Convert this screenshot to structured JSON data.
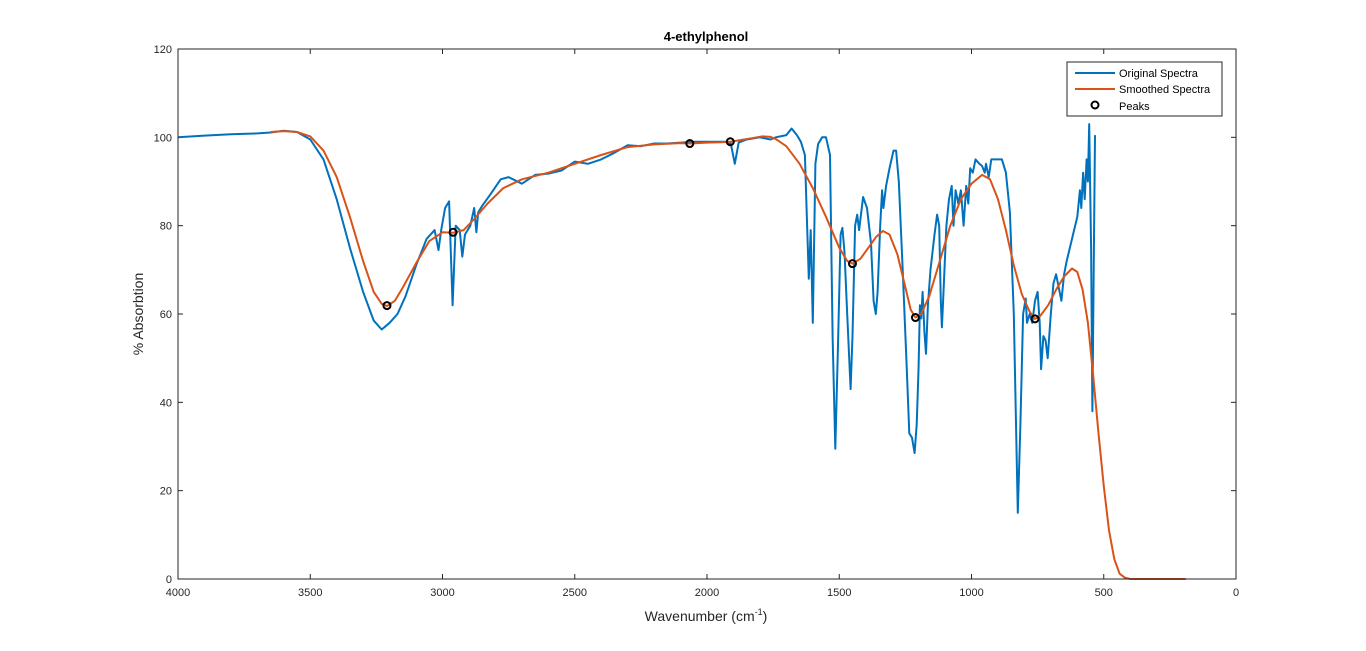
{
  "chart_data": {
    "type": "line",
    "title": "4-ethylphenol",
    "xlabel": "Wavenumber (cm",
    "xlabel_sup": "-1",
    "xlabel_end": ")",
    "ylabel": "% Absorbtion",
    "xlim": [
      0,
      4000
    ],
    "ylim": [
      0,
      120
    ],
    "x_reversed": true,
    "grid": false,
    "legend_position": "top-right",
    "x_ticks": [
      4000,
      3500,
      3000,
      2500,
      2000,
      1500,
      1000,
      500,
      0
    ],
    "y_ticks": [
      0,
      20,
      40,
      60,
      80,
      100,
      120
    ],
    "series": [
      {
        "name": "Original Spectra",
        "color": "#0072BD",
        "style": "line",
        "points": [
          [
            4000,
            100.0
          ],
          [
            3900,
            100.4
          ],
          [
            3800,
            100.7
          ],
          [
            3700,
            100.9
          ],
          [
            3650,
            101.1
          ],
          [
            3600,
            101.5
          ],
          [
            3550,
            101.2
          ],
          [
            3500,
            99.5
          ],
          [
            3450,
            95
          ],
          [
            3400,
            86
          ],
          [
            3350,
            75
          ],
          [
            3300,
            65
          ],
          [
            3260,
            58.5
          ],
          [
            3230,
            56.5
          ],
          [
            3200,
            58
          ],
          [
            3170,
            60
          ],
          [
            3140,
            64
          ],
          [
            3100,
            71
          ],
          [
            3060,
            77
          ],
          [
            3030,
            79
          ],
          [
            3015,
            74.5
          ],
          [
            3005,
            79
          ],
          [
            2990,
            84
          ],
          [
            2975,
            85.5
          ],
          [
            2962,
            62
          ],
          [
            2950,
            80
          ],
          [
            2935,
            79
          ],
          [
            2925,
            73
          ],
          [
            2915,
            78
          ],
          [
            2895,
            80
          ],
          [
            2880,
            84
          ],
          [
            2872,
            78.5
          ],
          [
            2865,
            83
          ],
          [
            2850,
            84.5
          ],
          [
            2820,
            87
          ],
          [
            2780,
            90.5
          ],
          [
            2750,
            91
          ],
          [
            2700,
            89.5
          ],
          [
            2650,
            91.5
          ],
          [
            2600,
            91.8
          ],
          [
            2550,
            92.5
          ],
          [
            2500,
            94.5
          ],
          [
            2450,
            94
          ],
          [
            2400,
            95
          ],
          [
            2350,
            96.5
          ],
          [
            2300,
            98.2
          ],
          [
            2250,
            98
          ],
          [
            2200,
            98.6
          ],
          [
            2150,
            98.6
          ],
          [
            2100,
            98.8
          ],
          [
            2050,
            99
          ],
          [
            2000,
            99
          ],
          [
            1950,
            99
          ],
          [
            1930,
            99
          ],
          [
            1910,
            98.6
          ],
          [
            1895,
            94
          ],
          [
            1880,
            98.8
          ],
          [
            1850,
            99.5
          ],
          [
            1800,
            100
          ],
          [
            1760,
            99.5
          ],
          [
            1740,
            100
          ],
          [
            1700,
            100.5
          ],
          [
            1680,
            102
          ],
          [
            1660,
            100.5
          ],
          [
            1645,
            99
          ],
          [
            1630,
            96
          ],
          [
            1615,
            68
          ],
          [
            1608,
            79
          ],
          [
            1600,
            58
          ],
          [
            1590,
            94
          ],
          [
            1580,
            98.5
          ],
          [
            1565,
            100
          ],
          [
            1550,
            100
          ],
          [
            1535,
            96
          ],
          [
            1525,
            55
          ],
          [
            1515,
            29.5
          ],
          [
            1505,
            52
          ],
          [
            1495,
            78
          ],
          [
            1488,
            79.5
          ],
          [
            1480,
            74
          ],
          [
            1470,
            60
          ],
          [
            1457,
            43
          ],
          [
            1450,
            55
          ],
          [
            1440,
            80
          ],
          [
            1432,
            82.5
          ],
          [
            1425,
            79
          ],
          [
            1410,
            86.5
          ],
          [
            1395,
            84
          ],
          [
            1380,
            76
          ],
          [
            1370,
            63
          ],
          [
            1362,
            60
          ],
          [
            1355,
            65
          ],
          [
            1345,
            80
          ],
          [
            1338,
            88
          ],
          [
            1333,
            84
          ],
          [
            1323,
            89
          ],
          [
            1310,
            93
          ],
          [
            1295,
            97
          ],
          [
            1285,
            97
          ],
          [
            1275,
            90
          ],
          [
            1260,
            70
          ],
          [
            1245,
            48
          ],
          [
            1235,
            33
          ],
          [
            1225,
            32
          ],
          [
            1215,
            28.5
          ],
          [
            1207,
            35
          ],
          [
            1200,
            48
          ],
          [
            1195,
            62
          ],
          [
            1190,
            59
          ],
          [
            1185,
            65
          ],
          [
            1178,
            56
          ],
          [
            1172,
            51
          ],
          [
            1165,
            62
          ],
          [
            1155,
            70
          ],
          [
            1140,
            78
          ],
          [
            1130,
            82.5
          ],
          [
            1122,
            80
          ],
          [
            1116,
            63
          ],
          [
            1112,
            57
          ],
          [
            1106,
            65
          ],
          [
            1095,
            80
          ],
          [
            1085,
            86
          ],
          [
            1075,
            89
          ],
          [
            1068,
            80
          ],
          [
            1060,
            88
          ],
          [
            1050,
            85
          ],
          [
            1040,
            88
          ],
          [
            1030,
            80
          ],
          [
            1020,
            89
          ],
          [
            1012,
            85
          ],
          [
            1005,
            93
          ],
          [
            995,
            92
          ],
          [
            985,
            95
          ],
          [
            970,
            94
          ],
          [
            960,
            93.5
          ],
          [
            950,
            92
          ],
          [
            945,
            94
          ],
          [
            935,
            91
          ],
          [
            925,
            95
          ],
          [
            900,
            95
          ],
          [
            885,
            95
          ],
          [
            870,
            92
          ],
          [
            855,
            83
          ],
          [
            840,
            60
          ],
          [
            825,
            15
          ],
          [
            815,
            35
          ],
          [
            805,
            60
          ],
          [
            795,
            63.5
          ],
          [
            790,
            58
          ],
          [
            780,
            60
          ],
          [
            770,
            58
          ],
          [
            760,
            63
          ],
          [
            750,
            65
          ],
          [
            742,
            58
          ],
          [
            737,
            47.5
          ],
          [
            728,
            55
          ],
          [
            720,
            54
          ],
          [
            712,
            50
          ],
          [
            700,
            60
          ],
          [
            690,
            67
          ],
          [
            680,
            69
          ],
          [
            660,
            63
          ],
          [
            650,
            69
          ],
          [
            640,
            72
          ],
          [
            620,
            77
          ],
          [
            600,
            82
          ],
          [
            590,
            88
          ],
          [
            585,
            84
          ],
          [
            578,
            92
          ],
          [
            572,
            86
          ],
          [
            565,
            95
          ],
          [
            560,
            90
          ],
          [
            555,
            103
          ],
          [
            548,
            75
          ],
          [
            543,
            38
          ],
          [
            538,
            70
          ],
          [
            533,
            100.5
          ]
        ]
      },
      {
        "name": "Smoothed Spectra",
        "color": "#D95319",
        "style": "line",
        "points": [
          [
            3650,
            101.2
          ],
          [
            3600,
            101.4
          ],
          [
            3550,
            101.2
          ],
          [
            3500,
            100.2
          ],
          [
            3450,
            97
          ],
          [
            3400,
            91
          ],
          [
            3350,
            82
          ],
          [
            3300,
            72
          ],
          [
            3260,
            65
          ],
          [
            3230,
            62.3
          ],
          [
            3210,
            61.8
          ],
          [
            3180,
            63
          ],
          [
            3150,
            66
          ],
          [
            3100,
            71.5
          ],
          [
            3050,
            76.5
          ],
          [
            3000,
            78.5
          ],
          [
            2960,
            78.4
          ],
          [
            2920,
            79
          ],
          [
            2880,
            81.5
          ],
          [
            2830,
            85
          ],
          [
            2770,
            88.5
          ],
          [
            2700,
            90.5
          ],
          [
            2600,
            92
          ],
          [
            2500,
            94
          ],
          [
            2400,
            96
          ],
          [
            2300,
            97.8
          ],
          [
            2200,
            98.4
          ],
          [
            2100,
            98.7
          ],
          [
            2065,
            98.6
          ],
          [
            2000,
            98.8
          ],
          [
            1950,
            98.9
          ],
          [
            1912,
            99
          ],
          [
            1880,
            99.3
          ],
          [
            1830,
            99.8
          ],
          [
            1790,
            100.2
          ],
          [
            1760,
            100.1
          ],
          [
            1740,
            99.6
          ],
          [
            1700,
            98
          ],
          [
            1650,
            94
          ],
          [
            1600,
            88.5
          ],
          [
            1550,
            82
          ],
          [
            1500,
            75
          ],
          [
            1470,
            72
          ],
          [
            1450,
            71.4
          ],
          [
            1420,
            72.5
          ],
          [
            1390,
            75
          ],
          [
            1360,
            77.5
          ],
          [
            1335,
            78.8
          ],
          [
            1310,
            78
          ],
          [
            1280,
            73.5
          ],
          [
            1250,
            66
          ],
          [
            1230,
            61
          ],
          [
            1212,
            59.2
          ],
          [
            1190,
            60
          ],
          [
            1160,
            64
          ],
          [
            1120,
            72
          ],
          [
            1080,
            80
          ],
          [
            1040,
            86
          ],
          [
            1000,
            89.5
          ],
          [
            960,
            91.5
          ],
          [
            930,
            90.5
          ],
          [
            900,
            86
          ],
          [
            870,
            79
          ],
          [
            840,
            71
          ],
          [
            810,
            64.5
          ],
          [
            780,
            60.5
          ],
          [
            760,
            58.9
          ],
          [
            740,
            59.6
          ],
          [
            710,
            62
          ],
          [
            680,
            65.5
          ],
          [
            650,
            68.5
          ],
          [
            620,
            70.3
          ],
          [
            600,
            69.5
          ],
          [
            580,
            65.5
          ],
          [
            560,
            58
          ],
          [
            540,
            46
          ],
          [
            520,
            33
          ],
          [
            500,
            21
          ],
          [
            480,
            11
          ],
          [
            460,
            4.5
          ],
          [
            440,
            1.2
          ],
          [
            420,
            0.3
          ],
          [
            400,
            0
          ],
          [
            350,
            0
          ],
          [
            300,
            0
          ],
          [
            250,
            0
          ],
          [
            190,
            0
          ]
        ]
      },
      {
        "name": "Peaks",
        "color": "#000000",
        "style": "marker",
        "points": [
          [
            3210,
            61.9
          ],
          [
            2960,
            78.5
          ],
          [
            2065,
            98.6
          ],
          [
            1912,
            99
          ],
          [
            1450,
            71.4
          ],
          [
            1212,
            59.2
          ],
          [
            760,
            58.9
          ]
        ]
      }
    ]
  }
}
